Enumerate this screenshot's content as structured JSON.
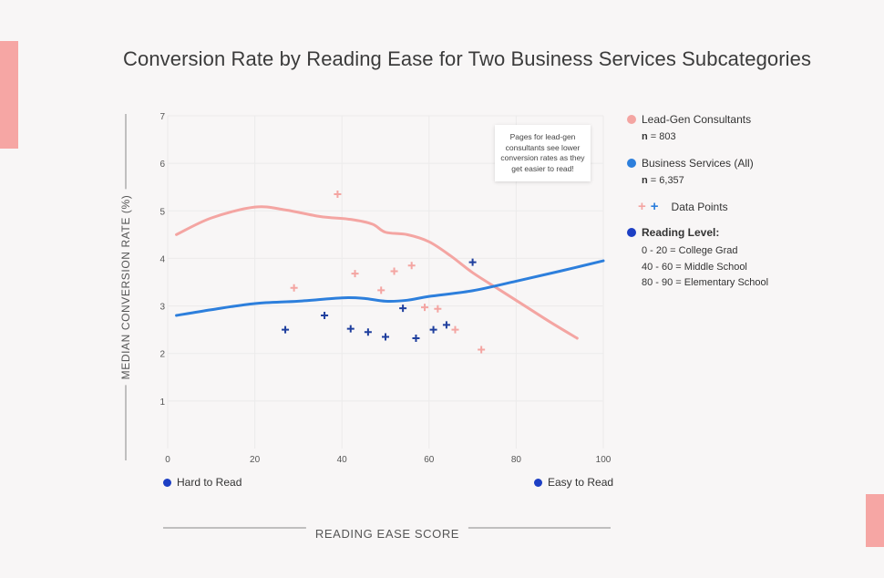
{
  "title": "Conversion Rate by Reading Ease for Two Business Services Subcategories",
  "colors": {
    "lead": "#f4a5a2",
    "business": "#2d7fdc",
    "business_dark": "#1f3f9e",
    "accent": "#f6a6a4"
  },
  "legend": {
    "lead_label": "Lead-Gen Consultants",
    "lead_n_prefix": "n",
    "lead_n_value": " = 803",
    "business_label": "Business Services (All)",
    "business_n_prefix": "n",
    "business_n_value": " = 6,357",
    "data_points_label": "Data Points",
    "reading_title": "Reading Level:",
    "reading_levels": [
      "0 - 20 = College Grad",
      "40 - 60 = Middle School",
      "80 - 90 = Elementary School"
    ]
  },
  "annotation": "Pages for lead-gen consultants see lower conversion rates as they get easier to read!",
  "corners": {
    "left": "Hard to Read",
    "right": "Easy to Read"
  },
  "chart_data": {
    "type": "line",
    "title": "Conversion Rate by Reading Ease for Two Business Services Subcategories",
    "xlabel": "READING EASE SCORE",
    "ylabel": "MEDIAN CONVERSION RATE (%)",
    "xlim": [
      0,
      100
    ],
    "ylim": [
      0,
      7
    ],
    "xticks": [
      0,
      20,
      40,
      60,
      80,
      100
    ],
    "yticks": [
      1,
      2,
      3,
      4,
      5,
      6,
      7
    ],
    "grid": true,
    "series": [
      {
        "name": "Lead-Gen Consultants",
        "type": "line",
        "x": [
          2,
          10,
          20,
          27,
          35,
          42,
          47,
          50,
          55,
          60,
          65,
          70,
          76,
          82,
          88,
          94
        ],
        "values": [
          4.5,
          4.85,
          5.08,
          5.02,
          4.88,
          4.82,
          4.72,
          4.55,
          4.5,
          4.35,
          4.05,
          3.7,
          3.35,
          3.0,
          2.65,
          2.32
        ]
      },
      {
        "name": "Business Services (All)",
        "type": "line",
        "x": [
          2,
          10,
          20,
          30,
          40,
          45,
          50,
          55,
          60,
          70,
          80,
          90,
          100
        ],
        "values": [
          2.8,
          2.92,
          3.05,
          3.1,
          3.17,
          3.16,
          3.1,
          3.12,
          3.2,
          3.32,
          3.52,
          3.73,
          3.95
        ]
      },
      {
        "name": "Lead-Gen Consultants data points",
        "type": "scatter",
        "x": [
          29,
          39,
          43,
          49,
          52,
          56,
          59,
          62,
          66,
          72
        ],
        "values": [
          3.38,
          5.35,
          3.68,
          3.33,
          3.73,
          3.85,
          2.97,
          2.94,
          2.5,
          2.08
        ]
      },
      {
        "name": "Business Services (All) data points",
        "type": "scatter",
        "x": [
          27,
          36,
          42,
          46,
          50,
          54,
          57,
          61,
          64,
          70
        ],
        "values": [
          2.5,
          2.8,
          2.52,
          2.45,
          2.35,
          2.95,
          2.32,
          2.5,
          2.6,
          3.92
        ]
      }
    ]
  }
}
